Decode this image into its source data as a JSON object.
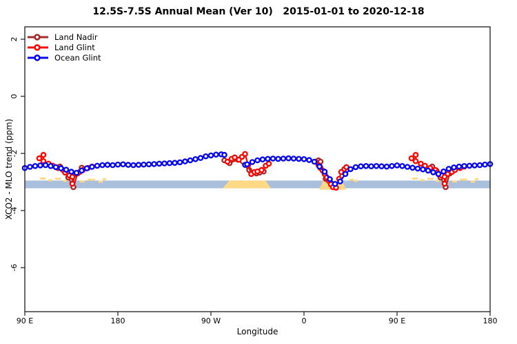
{
  "chart_data": {
    "type": "line",
    "title": "12.5S-7.5S Annual Mean (Ver 10)   2015-01-01 to 2020-12-18",
    "xlabel": "Longitude",
    "ylabel": "XCO2 - MLO trend (ppm)",
    "x_axis": {
      "note": "longitude axis, unwrapped degrees eastward from 90E; spans 450 degrees",
      "range": [
        90,
        540
      ],
      "ticks": [
        {
          "deg": 90,
          "label": "90 E"
        },
        {
          "deg": 180,
          "label": "180"
        },
        {
          "deg": 270,
          "label": "90 W"
        },
        {
          "deg": 360,
          "label": "0"
        },
        {
          "deg": 450,
          "label": "90 E"
        },
        {
          "deg": 540,
          "label": "180"
        }
      ]
    },
    "y_axis": {
      "range": [
        2.434,
        -7.542
      ],
      "ticks": [
        2,
        0,
        -2,
        -4,
        -6
      ]
    },
    "legend": [
      {
        "label": "Land Nadir",
        "color": "#A52A2A"
      },
      {
        "label": "Land Glint",
        "color": "#F80800"
      },
      {
        "label": "Ocean Glint",
        "color": "#0808EE"
      }
    ],
    "map_strip": {
      "ocean_color": "#A9BFDB",
      "land_color": "#FFD985",
      "band_ppm": [
        -2.95,
        -3.22
      ],
      "land_patches": [
        {
          "name": "south-america",
          "polygon": [
            [
              281.3,
              -3.22
            ],
            [
              288,
              -2.95
            ],
            [
              322.7,
              -2.95
            ],
            [
              328,
              -3.22
            ]
          ]
        },
        {
          "name": "africa",
          "polygon": [
            [
              374.7,
              -3.27
            ],
            [
              378.7,
              -2.95
            ],
            [
              396.7,
              -2.95
            ],
            [
              400.7,
              -3.27
            ]
          ]
        }
      ],
      "island_marks": [
        [
          104.7,
          5.3,
          -2.88
        ],
        [
          112.7,
          4,
          -2.94
        ],
        [
          119.3,
          6,
          -2.89
        ],
        [
          127.3,
          3.3,
          -2.96
        ],
        [
          132,
          2.7,
          -2.87
        ],
        [
          143.3,
          4.7,
          -2.98
        ],
        [
          150.7,
          7.3,
          -2.92
        ],
        [
          161.3,
          4,
          -2.99
        ],
        [
          165.3,
          3.3,
          -2.9
        ],
        [
          404,
          4,
          -2.92
        ],
        [
          408.7,
          3.3,
          -2.96
        ],
        [
          464.7,
          5.3,
          -2.88
        ],
        [
          472.7,
          4,
          -2.94
        ],
        [
          479.3,
          6,
          -2.89
        ],
        [
          487.3,
          3.3,
          -2.96
        ],
        [
          492,
          2.7,
          -2.87
        ],
        [
          503.3,
          4.7,
          -2.98
        ],
        [
          510.7,
          7.3,
          -2.92
        ],
        [
          521.3,
          4,
          -2.99
        ],
        [
          525.3,
          3.3,
          -2.9
        ]
      ]
    },
    "series": [
      {
        "name": "Land Nadir",
        "color": "#A52A2A",
        "segments": [
          [
            [
              124,
              -2.46
            ],
            [
              128,
              -2.6
            ],
            [
              132,
              -2.84
            ],
            [
              137,
              -3.18
            ],
            [
              141,
              -2.7
            ],
            [
              145,
              -2.5
            ]
          ],
          [
            [
              283,
              -2.24
            ],
            [
              288,
              -2.34
            ],
            [
              296,
              -2.22
            ],
            [
              307,
              -2.58
            ],
            [
              311,
              -2.67
            ],
            [
              314,
              -2.7
            ],
            [
              317,
              -2.67
            ],
            [
              321,
              -2.63
            ]
          ],
          [
            [
              374,
              -2.24
            ],
            [
              376,
              -2.29
            ],
            [
              381,
              -2.89
            ]
          ],
          [
            [
              484,
              -2.46
            ],
            [
              488,
              -2.6
            ],
            [
              492,
              -2.84
            ],
            [
              497,
              -3.18
            ],
            [
              501,
              -2.7
            ],
            [
              505,
              -2.5
            ]
          ]
        ]
      },
      {
        "name": "Land Glint",
        "color": "#F80800",
        "segments": [
          [
            [
              104,
              -2.17
            ],
            [
              108,
              -2.05
            ],
            [
              108,
              -2.27
            ],
            [
              113,
              -2.36
            ],
            [
              117,
              -2.43
            ],
            [
              122,
              -2.51
            ],
            [
              127,
              -2.58
            ],
            [
              129,
              -2.67
            ],
            [
              133,
              -2.77
            ],
            [
              136,
              -2.82
            ],
            [
              136,
              -3.06
            ],
            [
              139,
              -2.72
            ],
            [
              143,
              -2.65
            ],
            [
              146,
              -2.58
            ],
            [
              151,
              -2.51
            ],
            [
              155,
              -2.46
            ]
          ],
          [
            [
              286,
              -2.29
            ],
            [
              290,
              -2.19
            ],
            [
              293,
              -2.14
            ],
            [
              297,
              -2.22
            ],
            [
              300,
              -2.12
            ],
            [
              303,
              -2.02
            ],
            [
              306,
              -2.41
            ],
            [
              309,
              -2.72
            ],
            [
              312,
              -2.65
            ],
            [
              315,
              -2.63
            ],
            [
              319,
              -2.58
            ],
            [
              323,
              -2.43
            ],
            [
              326,
              -2.36
            ]
          ],
          [
            [
              371,
              -2.29
            ],
            [
              374,
              -2.41
            ],
            [
              376,
              -2.51
            ],
            [
              378,
              -2.6
            ],
            [
              380,
              -2.72
            ],
            [
              382,
              -2.84
            ],
            [
              384,
              -2.96
            ],
            [
              386,
              -3.08
            ],
            [
              388,
              -3.18
            ],
            [
              391,
              -3.2
            ],
            [
              394,
              -2.89
            ],
            [
              396,
              -2.65
            ],
            [
              399,
              -2.55
            ],
            [
              401,
              -2.48
            ]
          ],
          [
            [
              464,
              -2.17
            ],
            [
              468,
              -2.05
            ],
            [
              468,
              -2.27
            ],
            [
              473,
              -2.36
            ],
            [
              477,
              -2.43
            ],
            [
              482,
              -2.51
            ],
            [
              487,
              -2.58
            ],
            [
              489,
              -2.67
            ],
            [
              493,
              -2.77
            ],
            [
              496,
              -2.82
            ],
            [
              496,
              -3.06
            ],
            [
              499,
              -2.72
            ],
            [
              503,
              -2.65
            ],
            [
              506,
              -2.58
            ],
            [
              511,
              -2.51
            ],
            [
              515,
              -2.46
            ]
          ]
        ]
      },
      {
        "name": "Ocean Glint",
        "color": "#0808EE",
        "segments": [
          [
            [
              90,
              -2.51
            ],
            [
              95,
              -2.47
            ],
            [
              100,
              -2.44
            ],
            [
              105,
              -2.42
            ],
            [
              110,
              -2.41
            ],
            [
              115,
              -2.44
            ],
            [
              120,
              -2.48
            ],
            [
              125,
              -2.52
            ],
            [
              130,
              -2.57
            ],
            [
              135,
              -2.64
            ],
            [
              140,
              -2.68
            ],
            [
              145,
              -2.6
            ],
            [
              150,
              -2.52
            ],
            [
              155,
              -2.47
            ],
            [
              160,
              -2.43
            ],
            [
              165,
              -2.41
            ],
            [
              170,
              -2.4
            ],
            [
              175,
              -2.41
            ],
            [
              180,
              -2.39
            ],
            [
              185,
              -2.38
            ],
            [
              190,
              -2.4
            ],
            [
              195,
              -2.41
            ],
            [
              200,
              -2.4
            ],
            [
              205,
              -2.39
            ],
            [
              210,
              -2.38
            ],
            [
              215,
              -2.37
            ],
            [
              220,
              -2.36
            ],
            [
              225,
              -2.35
            ],
            [
              230,
              -2.34
            ],
            [
              235,
              -2.33
            ],
            [
              240,
              -2.31
            ],
            [
              245,
              -2.28
            ],
            [
              250,
              -2.24
            ],
            [
              255,
              -2.2
            ],
            [
              260,
              -2.16
            ],
            [
              265,
              -2.1
            ],
            [
              270,
              -2.07
            ],
            [
              275,
              -2.04
            ],
            [
              280,
              -2.03
            ],
            [
              283,
              -2.05
            ]
          ],
          [
            [
              303,
              -2.4
            ],
            [
              305,
              -2.38
            ],
            [
              310,
              -2.3
            ],
            [
              315,
              -2.24
            ],
            [
              320,
              -2.21
            ],
            [
              325,
              -2.19
            ],
            [
              330,
              -2.18
            ],
            [
              335,
              -2.19
            ],
            [
              340,
              -2.18
            ],
            [
              345,
              -2.17
            ],
            [
              350,
              -2.18
            ],
            [
              355,
              -2.19
            ],
            [
              360,
              -2.2
            ],
            [
              365,
              -2.23
            ],
            [
              370,
              -2.29
            ],
            [
              375,
              -2.46
            ],
            [
              380,
              -2.64
            ],
            [
              385,
              -2.9
            ],
            [
              390,
              -3.07
            ],
            [
              395,
              -2.98
            ],
            [
              400,
              -2.72
            ],
            [
              405,
              -2.55
            ],
            [
              410,
              -2.48
            ],
            [
              415,
              -2.45
            ],
            [
              420,
              -2.44
            ],
            [
              425,
              -2.45
            ],
            [
              430,
              -2.44
            ],
            [
              435,
              -2.45
            ],
            [
              440,
              -2.46
            ],
            [
              445,
              -2.44
            ],
            [
              450,
              -2.42
            ],
            [
              455,
              -2.44
            ],
            [
              460,
              -2.47
            ],
            [
              465,
              -2.5
            ],
            [
              470,
              -2.53
            ],
            [
              475,
              -2.56
            ],
            [
              480,
              -2.6
            ],
            [
              485,
              -2.66
            ],
            [
              490,
              -2.72
            ],
            [
              495,
              -2.63
            ],
            [
              500,
              -2.54
            ],
            [
              505,
              -2.49
            ],
            [
              510,
              -2.46
            ],
            [
              515,
              -2.44
            ],
            [
              520,
              -2.43
            ],
            [
              525,
              -2.42
            ],
            [
              530,
              -2.41
            ],
            [
              535,
              -2.39
            ],
            [
              540,
              -2.37
            ]
          ]
        ]
      }
    ]
  }
}
